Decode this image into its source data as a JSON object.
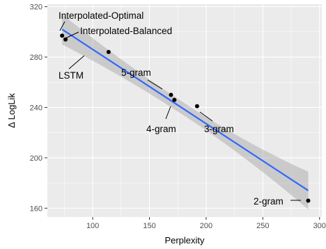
{
  "chart_data": {
    "type": "scatter",
    "xlabel": "Perplexity",
    "ylabel": "Δ LogLik",
    "xlim": [
      60,
      302
    ],
    "ylim": [
      153,
      322
    ],
    "x_ticks": [
      100,
      150,
      200,
      250,
      300
    ],
    "y_ticks": [
      160,
      200,
      240,
      280,
      320
    ],
    "grid": true,
    "points": [
      {
        "label": "Interpolated-Optimal",
        "x": 73,
        "y": 297
      },
      {
        "label": "Interpolated-Balanced",
        "x": 76,
        "y": 294
      },
      {
        "label": "LSTM",
        "x": 114,
        "y": 284
      },
      {
        "label": "5-gram",
        "x": 169,
        "y": 250
      },
      {
        "label": "4-gram",
        "x": 172,
        "y": 246
      },
      {
        "label": "3-gram",
        "x": 192,
        "y": 241
      },
      {
        "label": "2-gram",
        "x": 290,
        "y": 166
      }
    ],
    "fit": {
      "method": "linear",
      "x_range": [
        73,
        290
      ],
      "y_start": 302,
      "y_end": 174,
      "ci_half_width_start": 12,
      "ci_half_width_mid": 5,
      "ci_half_width_end": 15,
      "line_color": "#3366ff",
      "band_color": "#999999"
    },
    "colors": {
      "panel_background": "#ebebeb",
      "grid_major": "#ffffff",
      "point": "#000000"
    }
  }
}
